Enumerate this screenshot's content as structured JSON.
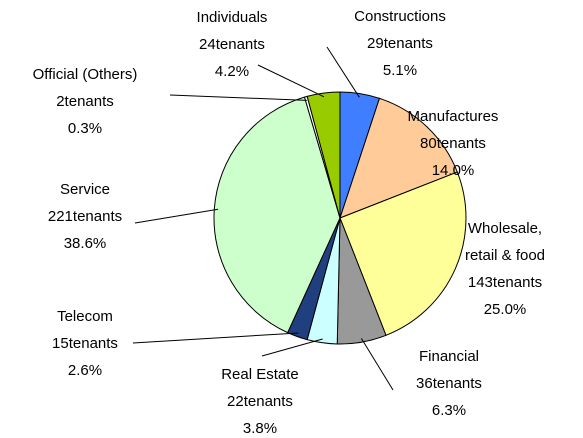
{
  "chart_data": {
    "type": "pie",
    "categories": [
      "Constructions",
      "Manufactures",
      "Wholesale,\nretail & food",
      "Financial",
      "Real Estate",
      "Telecom",
      "Service",
      "Official (Others)",
      "Individuals"
    ],
    "values": [
      29,
      80,
      143,
      36,
      22,
      15,
      221,
      2,
      24
    ],
    "value_labels": [
      "29tenants",
      "80tenants",
      "143tenants",
      "36tenants",
      "22tenants",
      "15tenants",
      "221tenants",
      "2tenants",
      "24tenants"
    ],
    "percent_labels": [
      "5.1%",
      "14.0%",
      "25.0%",
      "6.3%",
      "3.8%",
      "2.6%",
      "38.6%",
      "0.3%",
      "4.2%"
    ],
    "colors": [
      "#3f7fff",
      "#ffcc99",
      "#ffff99",
      "#999999",
      "#ccffff",
      "#1f3f7f",
      "#ccffcc",
      "#ffffff",
      "#99cc00"
    ]
  }
}
